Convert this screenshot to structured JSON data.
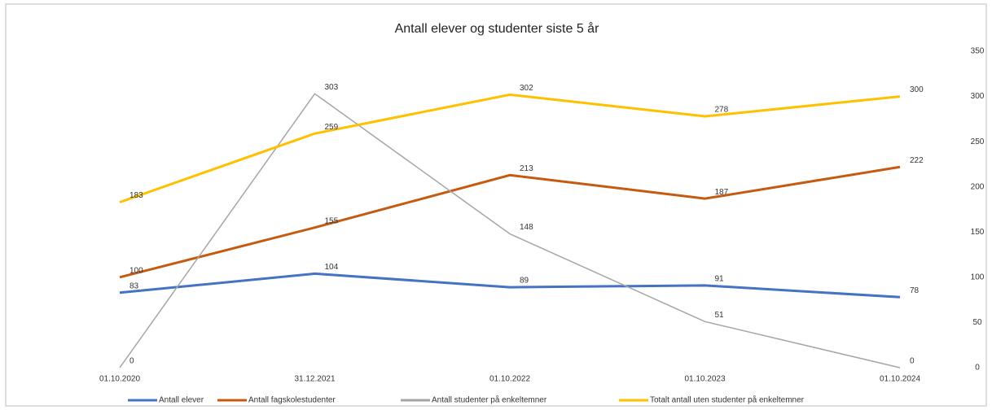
{
  "chart_data": {
    "type": "line",
    "title": "Antall elever og studenter siste 5 år",
    "categories": [
      "01.10.2020",
      "31.12.2021",
      "01.10.2022",
      "01.10.2023",
      "01.10.2024"
    ],
    "series": [
      {
        "name": "Antall elever",
        "color": "#4472c4",
        "values": [
          83,
          104,
          89,
          91,
          78
        ]
      },
      {
        "name": "Antall fagskolestudenter",
        "color": "#c55a11",
        "values": [
          100,
          155,
          213,
          187,
          222
        ]
      },
      {
        "name": "Antall studenter på enkeltemner",
        "color": "#a5a5a5",
        "values": [
          0,
          303,
          148,
          51,
          0
        ]
      },
      {
        "name": "Totalt antall uten studenter på enkeltemner",
        "color": "#ffc000",
        "values": [
          183,
          259,
          302,
          278,
          300
        ]
      }
    ],
    "ylim": [
      0,
      350
    ],
    "yticks": [
      0,
      50,
      100,
      150,
      200,
      250,
      300,
      350
    ],
    "grid": false,
    "legend": "bottom"
  }
}
